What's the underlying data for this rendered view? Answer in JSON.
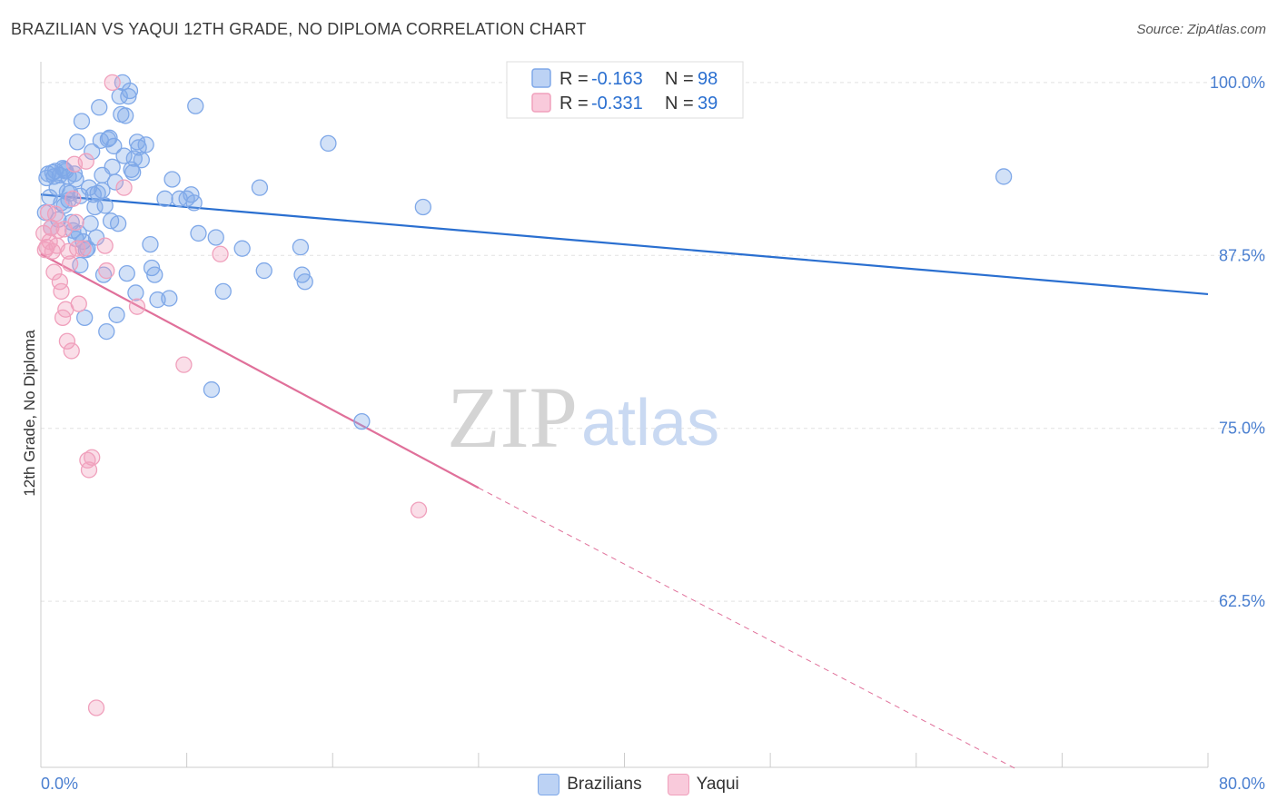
{
  "title": "BRAZILIAN VS YAQUI 12TH GRADE, NO DIPLOMA CORRELATION CHART",
  "source": "Source: ZipAtlas.com",
  "watermark": {
    "zip": "ZIP",
    "atlas": "atlas"
  },
  "chart_data": {
    "type": "scatter",
    "title": "BRAZILIAN VS YAQUI 12TH GRADE, NO DIPLOMA CORRELATION CHART",
    "xlabel": "",
    "ylabel": "12th Grade, No Diploma",
    "xlim": [
      0,
      80
    ],
    "ylim": [
      50.5,
      101.5
    ],
    "x_tick_labels": [
      "0.0%",
      "80.0%"
    ],
    "y_ticks": [
      100,
      87.5,
      75,
      62.5
    ],
    "y_tick_labels": [
      "100.0%",
      "87.5%",
      "75.0%",
      "62.5%"
    ],
    "legend": {
      "position": "top-center",
      "entries": [
        {
          "r_label": "R =",
          "r_value": "-0.163",
          "n_label": "N =",
          "n_value": "98"
        },
        {
          "r_label": "R =",
          "r_value": "-0.331",
          "n_label": "N =",
          "n_value": "39"
        }
      ]
    },
    "series": [
      {
        "name": "Brazilians",
        "color": "#7fa8e8",
        "line_color": "#2a6fd0",
        "r": -0.163,
        "n": 98,
        "trend": {
          "x0": 0,
          "y0": 91.9,
          "x1": 80,
          "y1": 84.7
        },
        "points": [
          [
            0.3,
            90.6
          ],
          [
            0.5,
            93.4
          ],
          [
            0.6,
            91.7
          ],
          [
            0.8,
            93.5
          ],
          [
            0.9,
            93.2
          ],
          [
            1.0,
            93.6
          ],
          [
            1.1,
            92.4
          ],
          [
            1.2,
            90.1
          ],
          [
            1.3,
            93.3
          ],
          [
            1.4,
            91.3
          ],
          [
            1.5,
            93.8
          ],
          [
            1.6,
            91.1
          ],
          [
            1.7,
            93.6
          ],
          [
            1.8,
            92.1
          ],
          [
            1.9,
            93.2
          ],
          [
            2.0,
            92.0
          ],
          [
            2.1,
            89.9
          ],
          [
            2.2,
            89.3
          ],
          [
            2.3,
            93.4
          ],
          [
            2.4,
            88.7
          ],
          [
            2.5,
            95.7
          ],
          [
            2.6,
            89.1
          ],
          [
            2.7,
            86.8
          ],
          [
            2.8,
            97.2
          ],
          [
            2.9,
            88.5
          ],
          [
            3.0,
            83.0
          ],
          [
            3.1,
            87.9
          ],
          [
            3.3,
            92.4
          ],
          [
            3.4,
            89.8
          ],
          [
            3.5,
            95.0
          ],
          [
            3.6,
            91.9
          ],
          [
            3.7,
            91.0
          ],
          [
            3.8,
            88.8
          ],
          [
            3.9,
            92.0
          ],
          [
            4.0,
            98.2
          ],
          [
            4.1,
            95.8
          ],
          [
            4.2,
            93.3
          ],
          [
            4.3,
            86.1
          ],
          [
            4.4,
            91.1
          ],
          [
            4.5,
            82.0
          ],
          [
            4.6,
            95.9
          ],
          [
            4.7,
            96.0
          ],
          [
            4.8,
            90.0
          ],
          [
            4.9,
            93.9
          ],
          [
            5.0,
            95.4
          ],
          [
            5.1,
            92.8
          ],
          [
            5.2,
            83.2
          ],
          [
            5.3,
            89.8
          ],
          [
            5.4,
            99.0
          ],
          [
            5.5,
            97.7
          ],
          [
            5.6,
            100.0
          ],
          [
            5.7,
            94.7
          ],
          [
            5.8,
            97.6
          ],
          [
            5.9,
            86.2
          ],
          [
            6.0,
            99.0
          ],
          [
            6.1,
            99.4
          ],
          [
            6.2,
            93.7
          ],
          [
            6.3,
            93.5
          ],
          [
            6.4,
            94.5
          ],
          [
            6.5,
            84.8
          ],
          [
            6.6,
            95.7
          ],
          [
            6.7,
            95.3
          ],
          [
            6.9,
            94.4
          ],
          [
            7.2,
            95.5
          ],
          [
            7.5,
            88.3
          ],
          [
            7.6,
            86.6
          ],
          [
            7.8,
            86.1
          ],
          [
            8.0,
            84.3
          ],
          [
            8.5,
            91.6
          ],
          [
            8.8,
            84.4
          ],
          [
            9.0,
            93.0
          ],
          [
            9.5,
            91.6
          ],
          [
            10.0,
            91.6
          ],
          [
            10.3,
            91.9
          ],
          [
            10.5,
            91.3
          ],
          [
            10.6,
            98.3
          ],
          [
            10.8,
            89.1
          ],
          [
            12.0,
            88.8
          ],
          [
            12.5,
            84.9
          ],
          [
            13.8,
            88.0
          ],
          [
            15.0,
            92.4
          ],
          [
            15.3,
            86.4
          ],
          [
            17.8,
            88.1
          ],
          [
            17.9,
            86.1
          ],
          [
            18.1,
            85.6
          ],
          [
            19.7,
            95.6
          ],
          [
            22.0,
            75.5
          ],
          [
            26.2,
            91.0
          ],
          [
            66.0,
            93.2
          ],
          [
            11.7,
            77.8
          ],
          [
            1.6,
            93.7
          ],
          [
            2.4,
            93.0
          ],
          [
            0.4,
            93.1
          ],
          [
            1.9,
            91.5
          ],
          [
            3.2,
            88.0
          ],
          [
            4.2,
            92.2
          ],
          [
            0.7,
            89.5
          ],
          [
            2.7,
            91.8
          ]
        ]
      },
      {
        "name": "Yaqui",
        "color": "#f0a0bc",
        "line_color": "#e0709a",
        "r": -0.331,
        "n": 39,
        "trend": {
          "x0": 0,
          "y0": 87.6,
          "x1": 30,
          "y1": 70.7,
          "dash_x1": 67,
          "dash_y1": 50.3
        },
        "points": [
          [
            0.2,
            89.1
          ],
          [
            0.3,
            87.9
          ],
          [
            0.4,
            88.1
          ],
          [
            0.5,
            90.6
          ],
          [
            0.6,
            88.5
          ],
          [
            0.7,
            89.5
          ],
          [
            0.8,
            87.8
          ],
          [
            0.9,
            86.3
          ],
          [
            1.0,
            90.5
          ],
          [
            1.1,
            88.2
          ],
          [
            1.2,
            89.3
          ],
          [
            1.3,
            85.6
          ],
          [
            1.4,
            84.9
          ],
          [
            1.5,
            83.0
          ],
          [
            1.6,
            89.4
          ],
          [
            1.7,
            83.6
          ],
          [
            1.8,
            81.3
          ],
          [
            1.9,
            87.8
          ],
          [
            2.0,
            86.9
          ],
          [
            2.1,
            80.6
          ],
          [
            2.2,
            91.6
          ],
          [
            2.3,
            94.1
          ],
          [
            2.4,
            89.9
          ],
          [
            2.5,
            88.0
          ],
          [
            2.6,
            84.0
          ],
          [
            2.9,
            88.0
          ],
          [
            3.1,
            94.3
          ],
          [
            3.2,
            72.7
          ],
          [
            3.3,
            72.0
          ],
          [
            3.5,
            72.9
          ],
          [
            3.8,
            54.8
          ],
          [
            4.4,
            88.2
          ],
          [
            4.5,
            86.4
          ],
          [
            4.9,
            100.0
          ],
          [
            5.7,
            92.4
          ],
          [
            6.6,
            83.8
          ],
          [
            9.8,
            79.6
          ],
          [
            12.3,
            87.6
          ],
          [
            25.9,
            69.1
          ]
        ]
      }
    ]
  }
}
